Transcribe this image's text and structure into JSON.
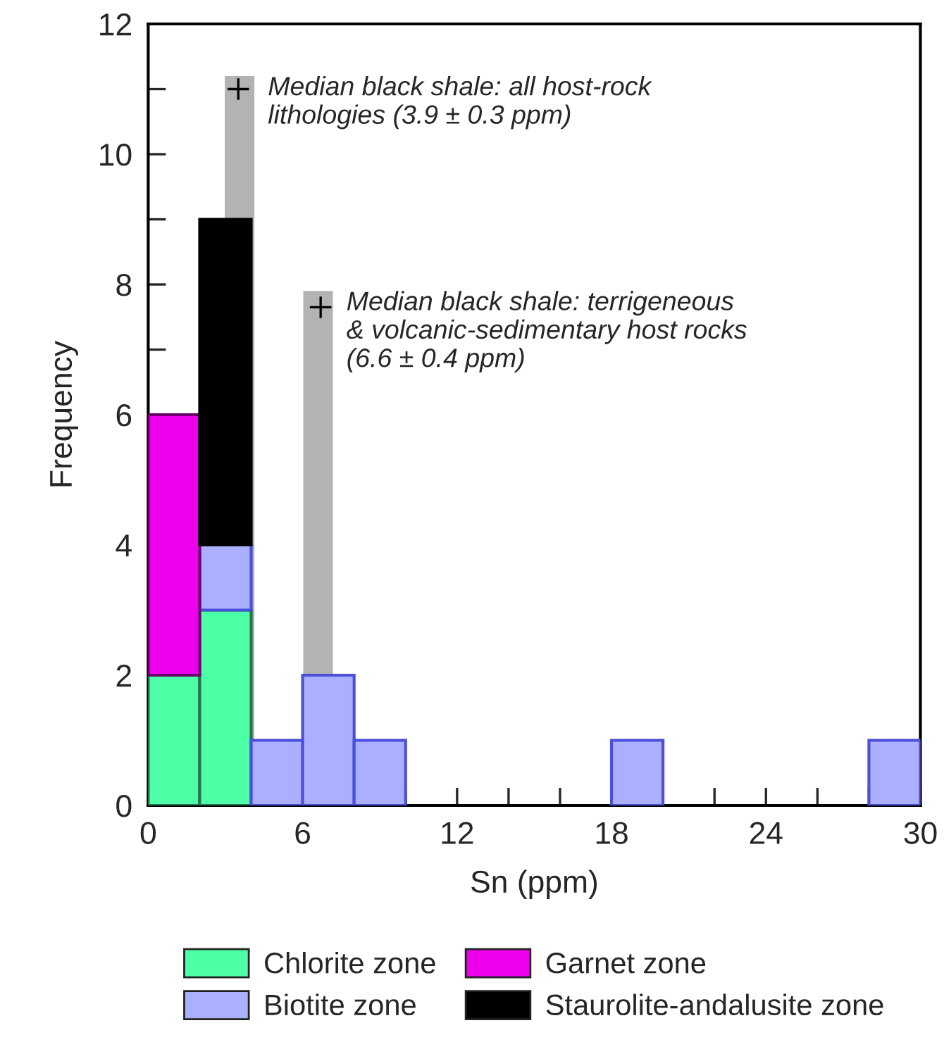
{
  "chart_data": {
    "type": "histogram",
    "xlabel": "Sn (ppm)",
    "ylabel": "Frequency",
    "bins": [
      0,
      2,
      4,
      6,
      8,
      10,
      12,
      14,
      16,
      18,
      20,
      22,
      24,
      26,
      28,
      30
    ],
    "series": [
      {
        "name": "Chlorite zone",
        "color": "#4dffa6",
        "values": [
          2,
          3,
          0,
          0,
          0,
          0,
          0,
          0,
          0,
          0,
          0,
          0,
          0,
          0,
          0
        ]
      },
      {
        "name": "Biotite zone",
        "color": "#aab0ff",
        "base": [
          null,
          3,
          0,
          0,
          0,
          null,
          null,
          null,
          null,
          0,
          null,
          null,
          null,
          null,
          0
        ],
        "values": [
          0,
          1,
          1,
          2,
          1,
          0,
          0,
          0,
          0,
          1,
          0,
          0,
          0,
          0,
          1
        ]
      },
      {
        "name": "Garnet zone",
        "color": "#ee00ee",
        "base": [
          2,
          null,
          null,
          null,
          null,
          null,
          null,
          null,
          null,
          null,
          null,
          null,
          null,
          null,
          null
        ],
        "values": [
          4,
          0,
          0,
          0,
          0,
          0,
          0,
          0,
          0,
          0,
          0,
          0,
          0,
          0,
          0
        ]
      },
      {
        "name": "Staurolite-andalusite zone",
        "color": "#000000",
        "base": [
          null,
          4,
          null,
          null,
          null,
          null,
          null,
          null,
          null,
          null,
          null,
          null,
          null,
          null,
          null
        ],
        "values": [
          0,
          5,
          0,
          0,
          0,
          0,
          0,
          0,
          0,
          0,
          0,
          0,
          0,
          0,
          0
        ]
      },
      {
        "type": "bar",
        "color": "#b3b3b3",
        "x": [
          3.55,
          6.6
        ],
        "values": [
          11.2,
          7.9
        ]
      },
      {
        "type": "scatter",
        "marker": "cross",
        "color": "#000000",
        "x": [
          3.5,
          6.7
        ],
        "values": [
          11.0,
          7.65
        ]
      }
    ],
    "annotations": [
      "Median black shale: all host-rock\nlithologies (3.9 ± 0.3 ppm)",
      "Median black shale: terrigeneous\n& volcanic-sedimentary host rocks\n(6.6 ± 0.4 ppm)"
    ],
    "xlim": [
      0,
      30
    ],
    "ylim": [
      0,
      12
    ],
    "xticks": [
      0,
      {
        "value": 2,
        "label": null
      },
      {
        "value": 4,
        "label": null
      },
      6,
      {
        "value": 8,
        "label": null
      },
      {
        "value": 10,
        "label": null
      },
      12,
      {
        "value": 14,
        "label": null
      },
      {
        "value": 16,
        "label": null
      },
      18,
      {
        "value": 20,
        "label": null
      },
      {
        "value": 22,
        "label": null
      },
      24,
      {
        "value": 26,
        "label": null
      },
      {
        "value": 28,
        "label": null
      },
      30
    ],
    "yticks": [
      0,
      {
        "value": 1,
        "label": null
      },
      2,
      {
        "value": 3,
        "label": null
      },
      4,
      {
        "value": 5,
        "label": null
      },
      6,
      {
        "value": 7,
        "label": null
      },
      8,
      {
        "value": 9,
        "label": null
      },
      10,
      {
        "value": 11,
        "label": null
      },
      12
    ],
    "legend": "bottom",
    "grid": false
  }
}
